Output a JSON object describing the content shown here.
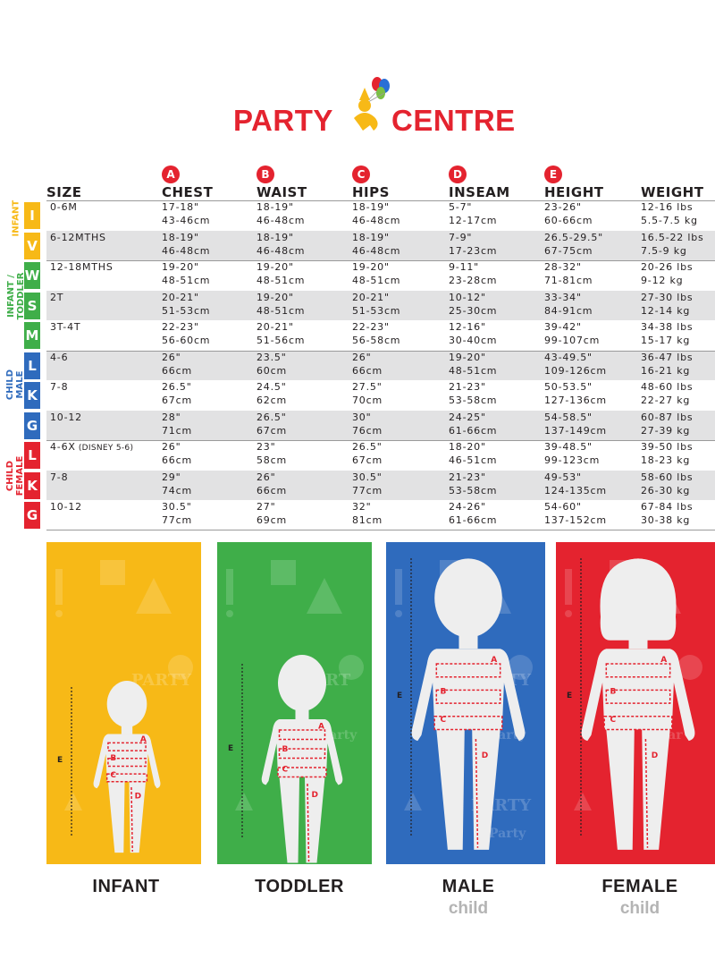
{
  "brand": {
    "name_left": "PARTY",
    "name_right": "CENTRE",
    "color": "#e4232f",
    "balloon_colors": [
      "#e4232f",
      "#2a6fd6",
      "#7bc043",
      "#f7b917"
    ]
  },
  "table": {
    "size_header": "SIZE",
    "columns": [
      {
        "letter": "A",
        "label": "CHEST"
      },
      {
        "letter": "B",
        "label": "WAIST"
      },
      {
        "letter": "C",
        "label": "HIPS"
      },
      {
        "letter": "D",
        "label": "INSEAM"
      },
      {
        "letter": "E",
        "label": "HEIGHT"
      },
      {
        "letter": "",
        "label": "WEIGHT"
      }
    ],
    "groups": [
      {
        "label": "INFANT",
        "color": "#f7b917",
        "sizes": [
          "I",
          "V"
        ]
      },
      {
        "label": "INFANT /\nTODDLER",
        "color": "#3fae49",
        "sizes": [
          "W",
          "S",
          "M"
        ]
      },
      {
        "label": "CHILD\nMALE",
        "color": "#2f6bbd",
        "sizes": [
          "L",
          "K",
          "G"
        ]
      },
      {
        "label": "CHILD\nFEMALE",
        "color": "#e4232f",
        "sizes": [
          "L",
          "K",
          "G"
        ]
      }
    ],
    "rows": [
      {
        "size": "0-6M",
        "note": "",
        "cells": [
          [
            "17-18\"",
            "43-46cm"
          ],
          [
            "18-19\"",
            "46-48cm"
          ],
          [
            "18-19\"",
            "46-48cm"
          ],
          [
            "5-7\"",
            "12-17cm"
          ],
          [
            "23-26\"",
            "60-66cm"
          ],
          [
            "12-16 lbs",
            "5.5-7.5 kg"
          ]
        ]
      },
      {
        "size": "6-12MTHS",
        "note": "",
        "cells": [
          [
            "18-19\"",
            "46-48cm"
          ],
          [
            "18-19\"",
            "46-48cm"
          ],
          [
            "18-19\"",
            "46-48cm"
          ],
          [
            "7-9\"",
            "17-23cm"
          ],
          [
            "26.5-29.5\"",
            "67-75cm"
          ],
          [
            "16.5-22 lbs",
            "7.5-9 kg"
          ]
        ]
      },
      {
        "size": "12-18MTHS",
        "note": "",
        "cells": [
          [
            "19-20\"",
            "48-51cm"
          ],
          [
            "19-20\"",
            "48-51cm"
          ],
          [
            "19-20\"",
            "48-51cm"
          ],
          [
            "9-11\"",
            "23-28cm"
          ],
          [
            "28-32\"",
            "71-81cm"
          ],
          [
            "20-26 lbs",
            "9-12 kg"
          ]
        ]
      },
      {
        "size": "2T",
        "note": "",
        "cells": [
          [
            "20-21\"",
            "51-53cm"
          ],
          [
            "19-20\"",
            "48-51cm"
          ],
          [
            "20-21\"",
            "51-53cm"
          ],
          [
            "10-12\"",
            "25-30cm"
          ],
          [
            "33-34\"",
            "84-91cm"
          ],
          [
            "27-30 lbs",
            "12-14 kg"
          ]
        ]
      },
      {
        "size": "3T-4T",
        "note": "",
        "cells": [
          [
            "22-23\"",
            "56-60cm"
          ],
          [
            "20-21\"",
            "51-56cm"
          ],
          [
            "22-23\"",
            "56-58cm"
          ],
          [
            "12-16\"",
            "30-40cm"
          ],
          [
            "39-42\"",
            "99-107cm"
          ],
          [
            "34-38 lbs",
            "15-17 kg"
          ]
        ]
      },
      {
        "size": "4-6",
        "note": "",
        "cells": [
          [
            "26\"",
            "66cm"
          ],
          [
            "23.5\"",
            "60cm"
          ],
          [
            "26\"",
            "66cm"
          ],
          [
            "19-20\"",
            "48-51cm"
          ],
          [
            "43-49.5\"",
            "109-126cm"
          ],
          [
            "36-47 lbs",
            "16-21 kg"
          ]
        ]
      },
      {
        "size": "7-8",
        "note": "",
        "cells": [
          [
            "26.5\"",
            "67cm"
          ],
          [
            "24.5\"",
            "62cm"
          ],
          [
            "27.5\"",
            "70cm"
          ],
          [
            "21-23\"",
            "53-58cm"
          ],
          [
            "50-53.5\"",
            "127-136cm"
          ],
          [
            "48-60 lbs",
            "22-27 kg"
          ]
        ]
      },
      {
        "size": "10-12",
        "note": "",
        "cells": [
          [
            "28\"",
            "71cm"
          ],
          [
            "26.5\"",
            "67cm"
          ],
          [
            "30\"",
            "76cm"
          ],
          [
            "24-25\"",
            "61-66cm"
          ],
          [
            "54-58.5\"",
            "137-149cm"
          ],
          [
            "60-87 lbs",
            "27-39 kg"
          ]
        ]
      },
      {
        "size": "4-6X",
        "note": "(DISNEY 5-6)",
        "cells": [
          [
            "26\"",
            "66cm"
          ],
          [
            "23\"",
            "58cm"
          ],
          [
            "26.5\"",
            "67cm"
          ],
          [
            "18-20\"",
            "46-51cm"
          ],
          [
            "39-48.5\"",
            "99-123cm"
          ],
          [
            "39-50 lbs",
            "18-23 kg"
          ]
        ]
      },
      {
        "size": "7-8",
        "note": "",
        "cells": [
          [
            "29\"",
            "74cm"
          ],
          [
            "26\"",
            "66cm"
          ],
          [
            "30.5\"",
            "77cm"
          ],
          [
            "21-23\"",
            "53-58cm"
          ],
          [
            "49-53\"",
            "124-135cm"
          ],
          [
            "58-60 lbs",
            "26-30 kg"
          ]
        ]
      },
      {
        "size": "10-12",
        "note": "",
        "cells": [
          [
            "30.5\"",
            "77cm"
          ],
          [
            "27\"",
            "69cm"
          ],
          [
            "32\"",
            "81cm"
          ],
          [
            "24-26\"",
            "61-66cm"
          ],
          [
            "54-60\"",
            "137-152cm"
          ],
          [
            "67-84 lbs",
            "30-38 kg"
          ]
        ]
      }
    ]
  },
  "figures": [
    {
      "title": "INFANT",
      "subtitle": "",
      "color": "#f7b917",
      "measure_labels": [
        "A",
        "B",
        "C",
        "D",
        "E"
      ],
      "bg_text": [
        "PARTY"
      ]
    },
    {
      "title": "TODDLER",
      "subtitle": "",
      "color": "#3fae49",
      "measure_labels": [
        "A",
        "B",
        "C",
        "D",
        "E"
      ],
      "bg_text": [
        "PART",
        "Party"
      ]
    },
    {
      "title": "MALE",
      "subtitle": "child",
      "color": "#2f6bbd",
      "measure_labels": [
        "A",
        "B",
        "C",
        "D",
        "E"
      ],
      "bg_text": [
        "PARTY",
        "Party",
        "PARTY",
        "Party"
      ]
    },
    {
      "title": "FEMALE",
      "subtitle": "child",
      "color": "#e4232f",
      "measure_labels": [
        "A",
        "B",
        "C",
        "D",
        "E"
      ],
      "bg_text": [
        "Par",
        "Par"
      ]
    }
  ]
}
